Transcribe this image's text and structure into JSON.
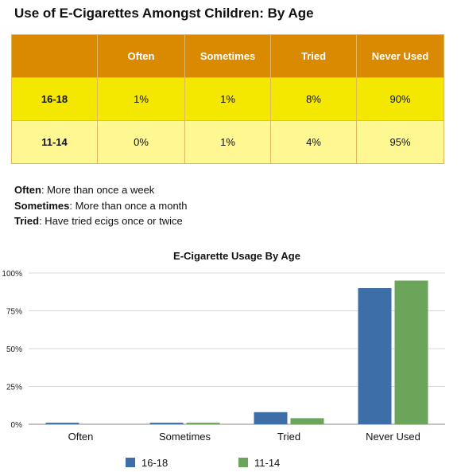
{
  "page": {
    "title": "Use of E-Cigarettes Amongst Children: By Age"
  },
  "table": {
    "columns": [
      "",
      "Often",
      "Sometimes",
      "Tried",
      "Never Used"
    ],
    "rows": [
      {
        "label": "16-18",
        "cells": [
          "1%",
          "1%",
          "8%",
          "90%"
        ]
      },
      {
        "label": "11-14",
        "cells": [
          "0%",
          "1%",
          "4%",
          "95%"
        ]
      }
    ]
  },
  "definitions": [
    {
      "term": "Often",
      "text": ": More than once a week"
    },
    {
      "term": "Sometimes",
      "text": ": More than once a month"
    },
    {
      "term": "Tried",
      "text": ": Have tried ecigs once or twice"
    }
  ],
  "chart_data": {
    "type": "bar",
    "title": "E-Cigarette Usage By Age",
    "categories": [
      "Often",
      "Sometimes",
      "Tried",
      "Never Used"
    ],
    "series": [
      {
        "name": "16-18",
        "values": [
          1,
          1,
          8,
          90
        ],
        "color": "#3d6ea8"
      },
      {
        "name": "11-14",
        "values": [
          0,
          1,
          4,
          95
        ],
        "color": "#6aa55a"
      }
    ],
    "ylim": [
      0,
      100
    ],
    "yticks": [
      0,
      25,
      50,
      75,
      100
    ],
    "ytick_labels": [
      "0%",
      "25%",
      "50%",
      "75%",
      "100%"
    ],
    "grid": true,
    "legend": "bottom-center"
  }
}
